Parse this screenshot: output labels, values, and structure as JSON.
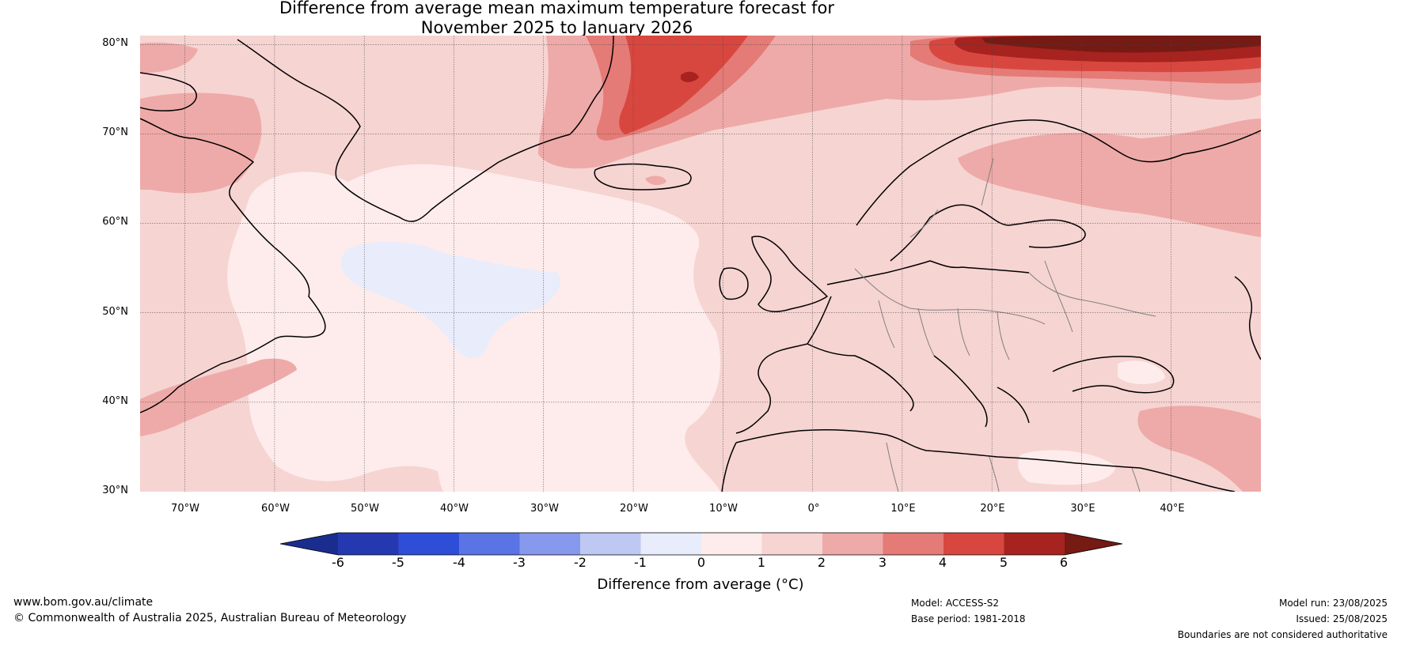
{
  "title": {
    "line1": "Difference from average mean maximum temperature forecast for",
    "line2": "November 2025 to January 2026"
  },
  "map": {
    "latitude_labels": [
      "80°N",
      "70°N",
      "60°N",
      "50°N",
      "40°N",
      "30°N"
    ],
    "longitude_labels": [
      "70°W",
      "60°W",
      "50°W",
      "40°W",
      "30°W",
      "20°W",
      "10°W",
      "0°",
      "10°E",
      "20°E",
      "30°E",
      "40°E"
    ],
    "extent": {
      "lon": [
        -75,
        50
      ],
      "lat": [
        30,
        81
      ]
    },
    "gridlines": true
  },
  "colorbar": {
    "ticks": [
      "-6",
      "-5",
      "-4",
      "-3",
      "-2",
      "-1",
      "0",
      "1",
      "2",
      "3",
      "4",
      "5",
      "6"
    ],
    "colors": [
      "#1a2d8f",
      "#2438b0",
      "#2f4ed8",
      "#5a74e5",
      "#8799ec",
      "#bec8f3",
      "#e8ecfb",
      "#fdeceb",
      "#f6d4d2",
      "#eeaaa8",
      "#e47b76",
      "#d8473f",
      "#a6231f",
      "#761a14"
    ],
    "label": "Difference from average (°C)"
  },
  "footer": {
    "url": "www.bom.gov.au/climate",
    "copyright": "© Commonwealth of Australia 2025, Australian Bureau of Meteorology",
    "model": "Model: ACCESS-S2",
    "base_period": "Base period: 1981-2018",
    "model_run": "Model run: 23/08/2025",
    "issued": "Issued: 25/08/2025",
    "disclaimer": "Boundaries are not considered authoritative"
  }
}
